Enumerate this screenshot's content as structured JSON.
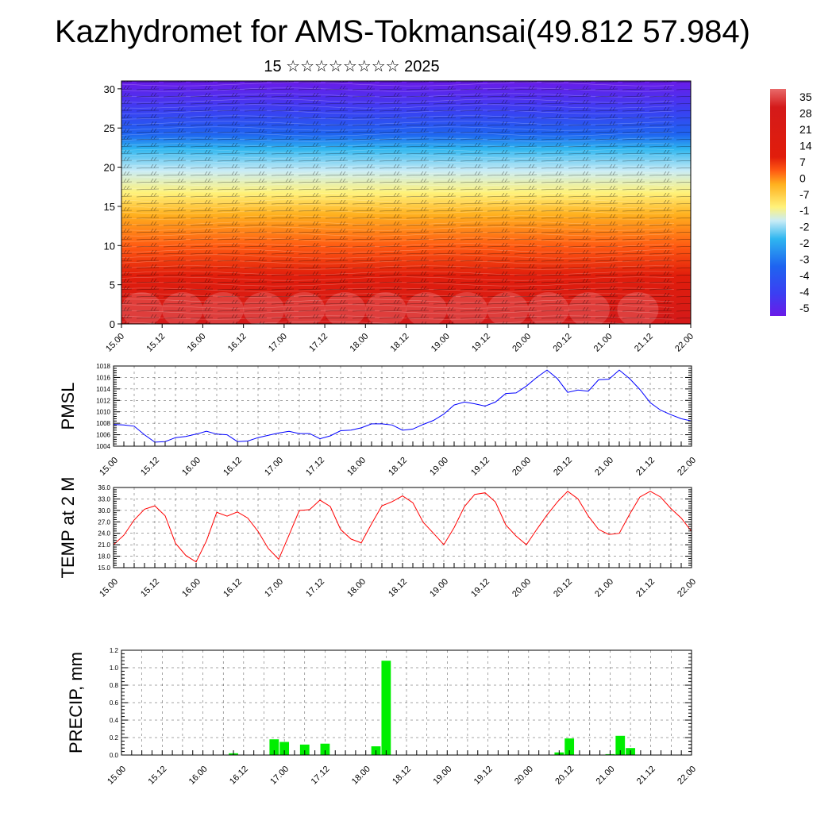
{
  "title": "Kazhydromet for AMS-Tokmansai(49.812 57.984)",
  "subtitle": "15 ☆☆☆☆☆☆☆☆ 2025",
  "chart_data": [
    {
      "type": "heatmap",
      "ylim": [
        0,
        31
      ],
      "yticks": [
        "0",
        "5",
        "10",
        "15",
        "20",
        "25",
        "30"
      ],
      "xticks": [
        "15.00",
        "15.12",
        "16.00",
        "16.12",
        "17.00",
        "17.12",
        "18.00",
        "18.12",
        "19.00",
        "19.12",
        "20.00",
        "20.12",
        "21.00",
        "21.12",
        "22.00"
      ],
      "colorbar_labels": [
        "35",
        "28",
        "21",
        "14",
        "7",
        "0",
        "-7",
        "-1",
        "-2",
        "-2",
        "-3",
        "-4",
        "-4",
        "-5"
      ],
      "colors": [
        "#6a1be8",
        "#3b3ff2",
        "#1e64f0",
        "#2fb6f0",
        "#c9ecf6",
        "#fff27a",
        "#ffb01e",
        "#ff5a12",
        "#e11d0b",
        "#d41a1a",
        "#e86a6a"
      ],
      "overlay": "wind barbs"
    },
    {
      "type": "line",
      "ylabel": "PMSL",
      "ylim": [
        1004,
        1018
      ],
      "yticks": [
        "1004",
        "1006",
        "1008",
        "1010",
        "1012",
        "1014",
        "1016",
        "1018"
      ],
      "xticks": [
        "15.00",
        "15.12",
        "16.00",
        "16.12",
        "17.00",
        "17.12",
        "18.00",
        "18.12",
        "19.00",
        "19.12",
        "20.00",
        "20.12",
        "21.00",
        "21.12",
        "22.00"
      ],
      "line_color": "#0000ff",
      "values": [
        1007.8,
        1007.7,
        1007.5,
        1006.0,
        1004.7,
        1004.8,
        1005.5,
        1005.7,
        1006.1,
        1006.6,
        1006.1,
        1006.0,
        1004.8,
        1004.9,
        1005.5,
        1005.9,
        1006.3,
        1006.6,
        1006.2,
        1006.2,
        1005.3,
        1005.8,
        1006.7,
        1006.8,
        1007.2,
        1007.9,
        1007.9,
        1007.7,
        1006.8,
        1007.0,
        1007.8,
        1008.5,
        1009.6,
        1011.2,
        1011.7,
        1011.4,
        1011.0,
        1011.7,
        1013.2,
        1013.3,
        1014.5,
        1016.0,
        1017.3,
        1015.8,
        1013.4,
        1013.8,
        1013.6,
        1015.6,
        1015.7,
        1017.3,
        1015.8,
        1013.9,
        1011.6,
        1010.3,
        1009.5,
        1008.8,
        1008.4
      ]
    },
    {
      "type": "line",
      "ylabel": "TEMP at 2 M",
      "ylim": [
        15,
        36
      ],
      "yticks": [
        "15.0",
        "18.0",
        "21.0",
        "24.0",
        "27.0",
        "30.0",
        "33.0",
        "36.0"
      ],
      "xticks": [
        "15.00",
        "15.12",
        "16.00",
        "16.12",
        "17.00",
        "17.12",
        "18.00",
        "18.12",
        "19.00",
        "19.12",
        "20.00",
        "20.12",
        "21.00",
        "21.12",
        "22.00"
      ],
      "line_color": "#ff0000",
      "values": [
        21.0,
        23.5,
        27.5,
        30.3,
        31.2,
        28.6,
        21.4,
        18.2,
        16.5,
        22.0,
        29.5,
        28.5,
        29.6,
        28.0,
        24.5,
        20.0,
        17.2,
        23.5,
        30.0,
        30.2,
        32.7,
        31.0,
        25.0,
        22.5,
        21.5,
        26.5,
        31.2,
        32.3,
        33.8,
        32.0,
        26.9,
        24.0,
        21.0,
        25.5,
        31.0,
        34.2,
        34.6,
        32.2,
        26.2,
        23.3,
        21.0,
        25.0,
        28.8,
        32.2,
        35.0,
        33.0,
        28.5,
        25.0,
        23.7,
        24.0,
        29.0,
        33.5,
        35.0,
        33.5,
        30.5,
        28.0,
        24.5
      ]
    },
    {
      "type": "bar",
      "ylabel": "PRECIP, mm",
      "ylim": [
        0,
        1.2
      ],
      "yticks": [
        "0.0",
        "0.2",
        "0.4",
        "0.6",
        "0.8",
        "1.0",
        "1.2"
      ],
      "xticks": [
        "15.00",
        "15.12",
        "16.00",
        "16.12",
        "17.00",
        "17.12",
        "18.00",
        "18.12",
        "19.00",
        "19.12",
        "20.00",
        "20.12",
        "21.00",
        "21.12",
        "22.00"
      ],
      "bar_color": "#00ee00",
      "bars": [
        {
          "x": 16.375,
          "value": 0.02
        },
        {
          "x": 16.875,
          "value": 0.18
        },
        {
          "x": 17.0,
          "value": 0.15
        },
        {
          "x": 17.25,
          "value": 0.12
        },
        {
          "x": 17.5,
          "value": 0.13
        },
        {
          "x": 18.125,
          "value": 0.1
        },
        {
          "x": 18.25,
          "value": 1.08
        },
        {
          "x": 20.375,
          "value": 0.03
        },
        {
          "x": 20.5,
          "value": 0.19
        },
        {
          "x": 21.0,
          "value": 0.01
        },
        {
          "x": 21.125,
          "value": 0.22
        },
        {
          "x": 21.25,
          "value": 0.08
        }
      ]
    }
  ]
}
